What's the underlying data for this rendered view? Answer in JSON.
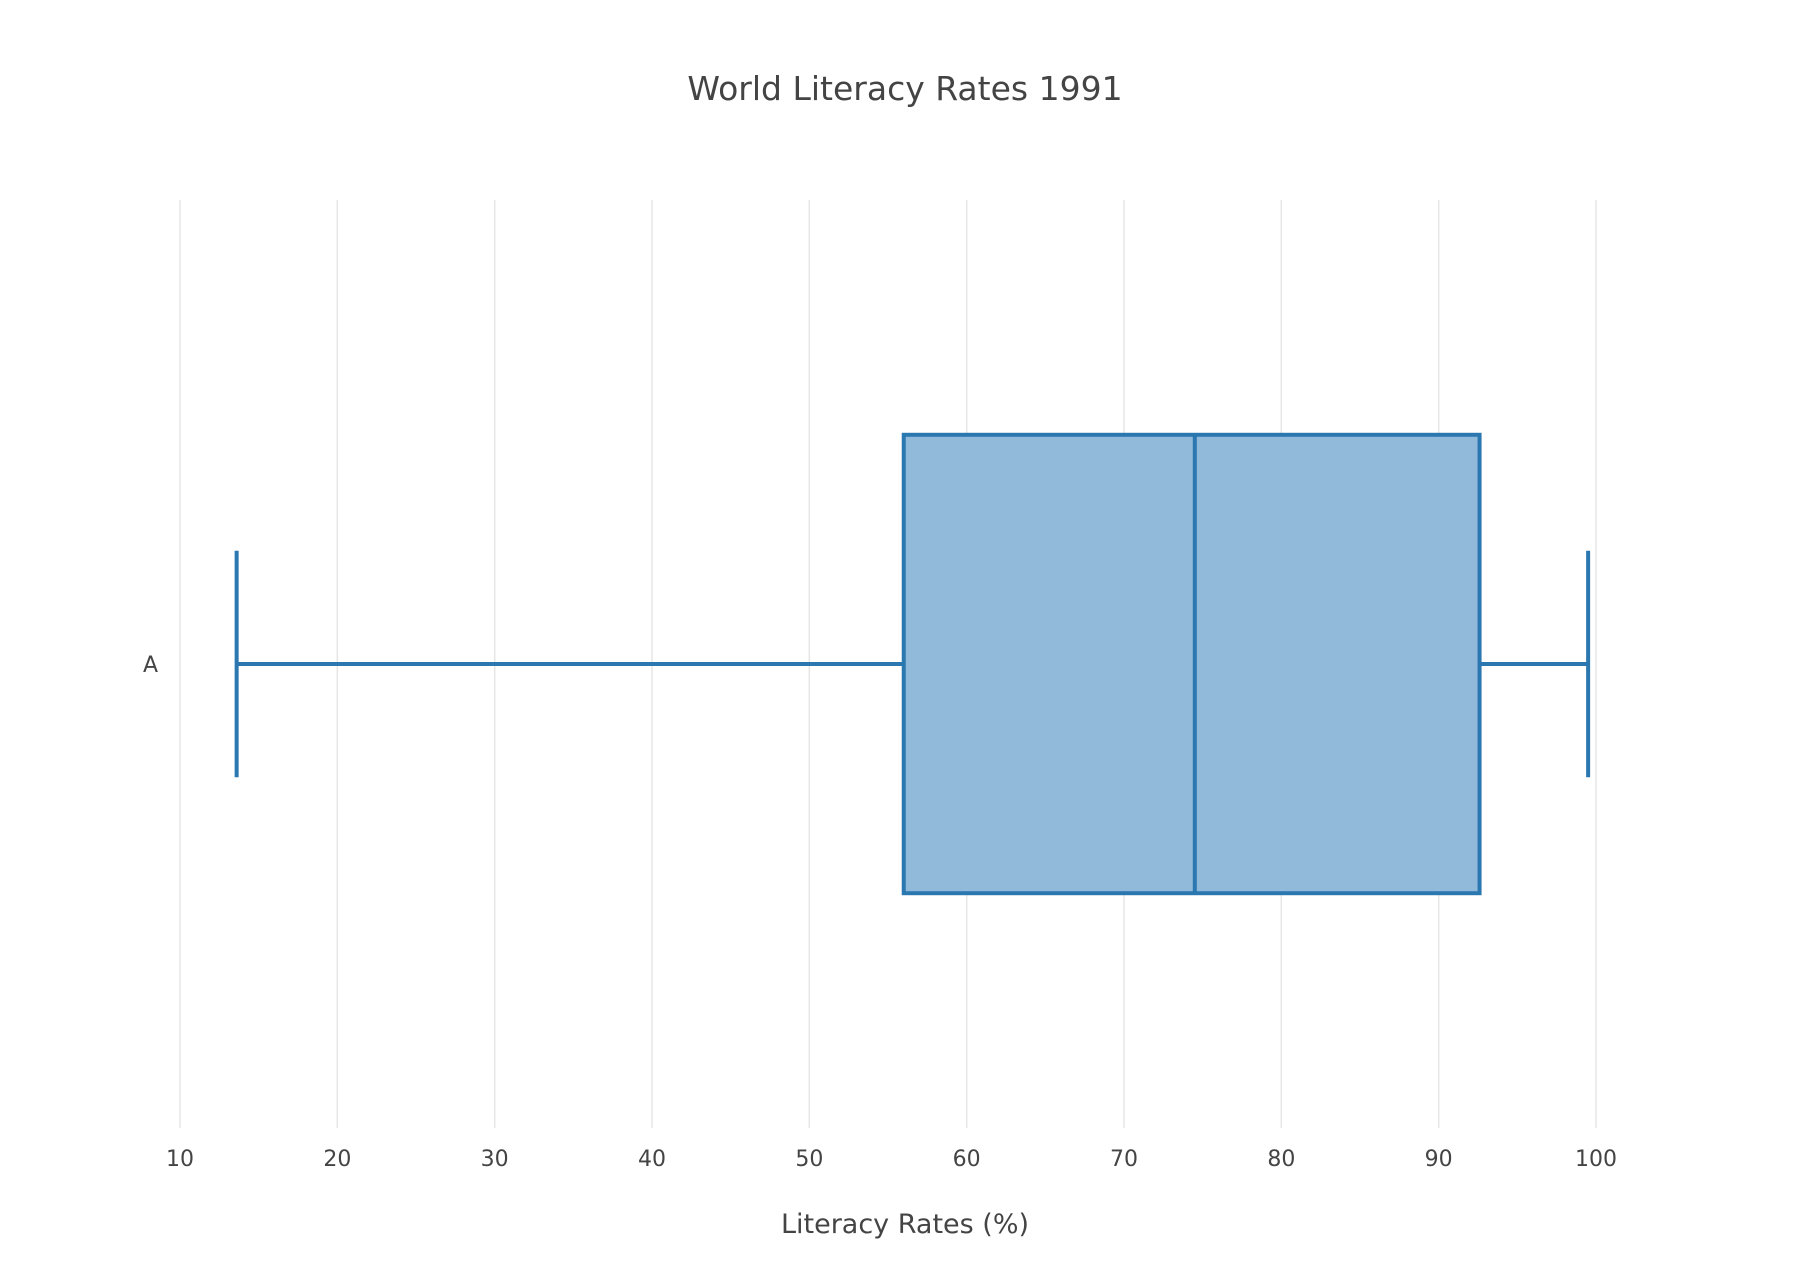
{
  "chart_data": {
    "type": "box",
    "title": "World Literacy Rates 1991",
    "xlabel": "Literacy Rates (%)",
    "ylabel": "",
    "orientation": "horizontal",
    "xlim": [
      10,
      100
    ],
    "x_ticks": [
      10,
      20,
      30,
      40,
      50,
      60,
      70,
      80,
      90,
      100
    ],
    "grid": "vertical",
    "series": [
      {
        "category": "A",
        "min": 13.6,
        "q1": 56.0,
        "median": 74.5,
        "q3": 92.6,
        "max": 99.5
      }
    ],
    "colors": {
      "box_fill": "#91b9d9",
      "box_line": "#2b77b0",
      "grid": "#e6e6e6",
      "text": "#444444"
    }
  }
}
